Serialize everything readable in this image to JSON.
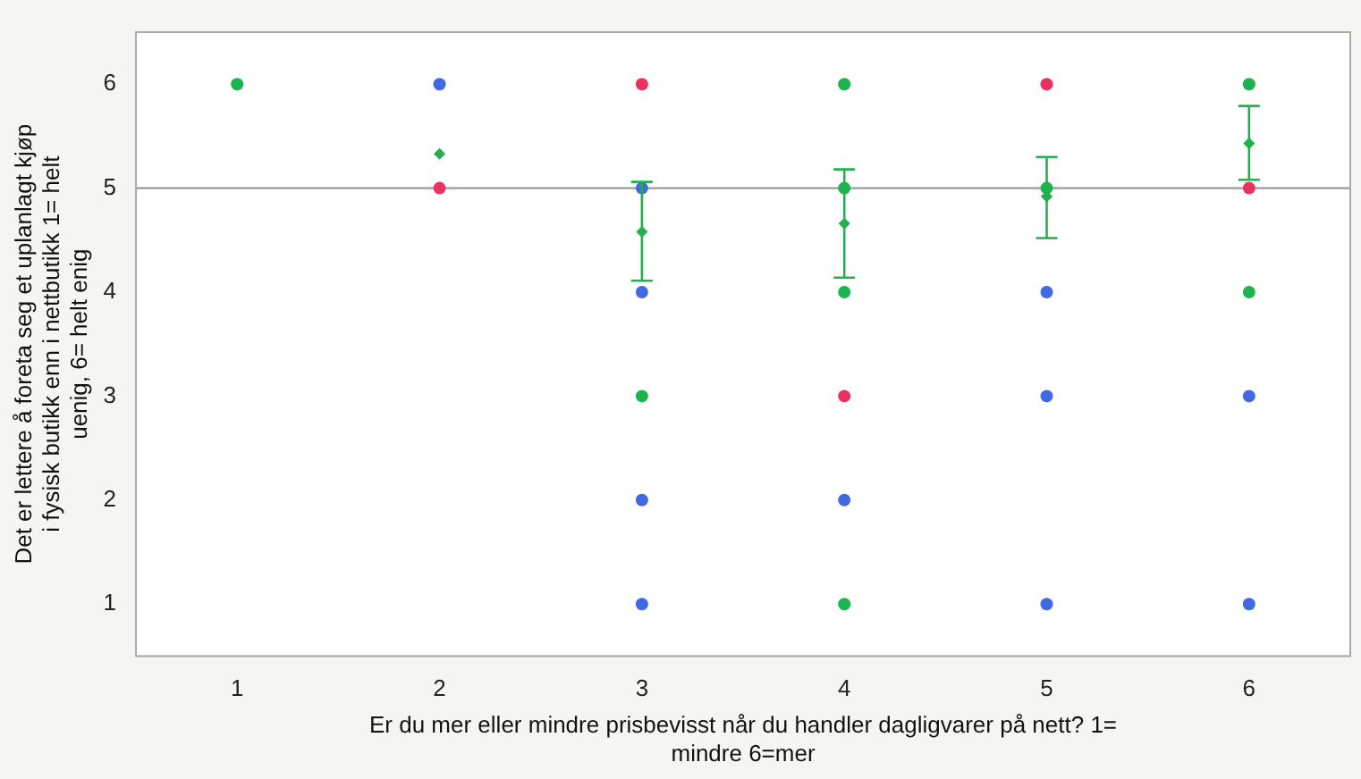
{
  "chart_data": {
    "type": "scatter",
    "xlabel": "Er du mer eller mindre prisbevisst når du handler dagligvarer på nett? 1= mindre 6=mer",
    "ylabel": "Det er lettere å foreta seg et uplanlagt kjøp i fysisk butikk enn i nettbutikk 1= helt uenig, 6= helt enig",
    "categories": [
      "1",
      "2",
      "3",
      "4",
      "5",
      "6"
    ],
    "ylim": [
      0.5,
      6.5
    ],
    "yticks": [
      1,
      2,
      3,
      4,
      5,
      6
    ],
    "grid": false,
    "legend": false,
    "marker": "circle",
    "ref_lines": [
      {
        "axis": "y",
        "value": 5,
        "color": "#999999"
      }
    ],
    "series": [
      {
        "x": [
          "1",
          "2",
          "2",
          "3",
          "3",
          "3",
          "3",
          "3",
          "3",
          "4",
          "4",
          "4",
          "4",
          "4",
          "4",
          "5",
          "5",
          "5",
          "5",
          "5",
          "6",
          "6",
          "6",
          "6",
          "6"
        ],
        "values": [
          6,
          6,
          5,
          6,
          5,
          4,
          3,
          2,
          1,
          6,
          5,
          4,
          3,
          2,
          1,
          6,
          5,
          4,
          3,
          1,
          6,
          5,
          4,
          3,
          1
        ],
        "colors": [
          "#1db34f",
          "#4169e1",
          "#e8325f",
          "#e8325f",
          "#4169e1",
          "#4169e1",
          "#1db34f",
          "#4169e1",
          "#4169e1",
          "#1db34f",
          "#1db34f",
          "#1db34f",
          "#e8325f",
          "#4169e1",
          "#1db34f",
          "#e8325f",
          "#1db34f",
          "#4169e1",
          "#4169e1",
          "#4169e1",
          "#1db34f",
          "#e8325f",
          "#1db34f",
          "#4169e1",
          "#4169e1"
        ]
      },
      {
        "marker": "diamond",
        "color": "#22b14c",
        "values": [
          null,
          5.33,
          4.58,
          4.66,
          4.92,
          5.43
        ],
        "errors": [
          null,
          null,
          [
            4.11,
            5.06
          ],
          [
            4.14,
            5.18
          ],
          [
            4.52,
            5.3
          ],
          [
            5.08,
            5.79
          ]
        ]
      }
    ]
  }
}
